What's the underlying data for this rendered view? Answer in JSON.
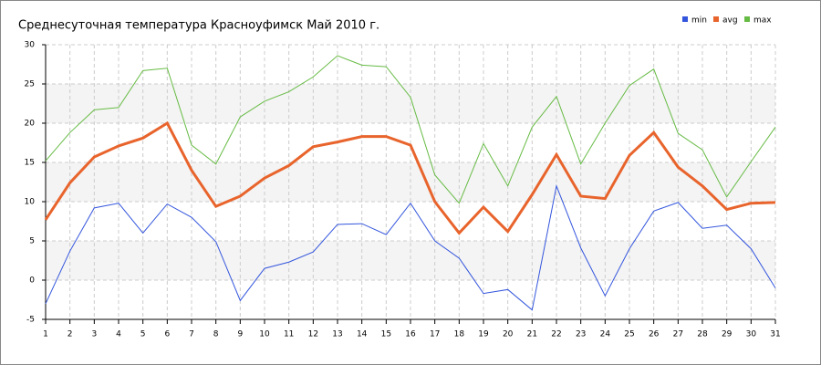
{
  "chart_data": {
    "type": "line",
    "title": "Среднесуточная температура Красноуфимск  Май 2010 г.",
    "x": [
      1,
      2,
      3,
      4,
      5,
      6,
      7,
      8,
      9,
      10,
      11,
      12,
      13,
      14,
      15,
      16,
      17,
      18,
      19,
      20,
      21,
      22,
      23,
      24,
      25,
      26,
      27,
      28,
      29,
      30,
      31
    ],
    "xlim": [
      1,
      31
    ],
    "xticks": [
      1,
      2,
      3,
      4,
      5,
      6,
      7,
      8,
      9,
      10,
      11,
      12,
      13,
      14,
      15,
      16,
      17,
      18,
      19,
      20,
      21,
      22,
      23,
      24,
      25,
      26,
      27,
      28,
      29,
      30,
      31
    ],
    "ylim": [
      -5,
      30
    ],
    "yticks": [
      -5,
      0,
      5,
      10,
      15,
      20,
      25,
      30
    ],
    "grid": true,
    "legend": "top-right",
    "series": [
      {
        "name": "min",
        "color": "#3355dd",
        "values": [
          -3.0,
          3.7,
          9.2,
          9.8,
          6.0,
          9.7,
          8.0,
          4.9,
          -2.6,
          1.5,
          2.3,
          3.6,
          7.1,
          7.2,
          5.8,
          9.8,
          5.0,
          2.8,
          -1.7,
          -1.2,
          -3.8,
          12.0,
          4.1,
          -2.0,
          4.0,
          8.8,
          9.9,
          6.6,
          7.0,
          4.0,
          -1.0
        ]
      },
      {
        "name": "avg",
        "color": "#e8642c",
        "values": [
          7.7,
          12.4,
          15.7,
          17.1,
          18.1,
          20.0,
          14.0,
          9.4,
          10.7,
          13.0,
          14.6,
          17.0,
          17.6,
          18.3,
          18.3,
          17.2,
          10.0,
          6.0,
          9.3,
          6.2,
          10.9,
          16.0,
          10.7,
          10.4,
          15.9,
          18.8,
          14.4,
          12.0,
          9.0,
          9.8,
          9.9
        ]
      },
      {
        "name": "max",
        "color": "#66bb44",
        "values": [
          15.2,
          18.8,
          21.7,
          22.0,
          26.7,
          27.0,
          17.2,
          14.8,
          20.8,
          22.8,
          24.0,
          25.9,
          28.6,
          27.4,
          27.2,
          23.3,
          13.4,
          9.8,
          17.4,
          12.0,
          19.5,
          23.4,
          14.8,
          20.0,
          24.8,
          26.9,
          18.7,
          16.6,
          10.6,
          15.1,
          19.5
        ]
      }
    ]
  }
}
